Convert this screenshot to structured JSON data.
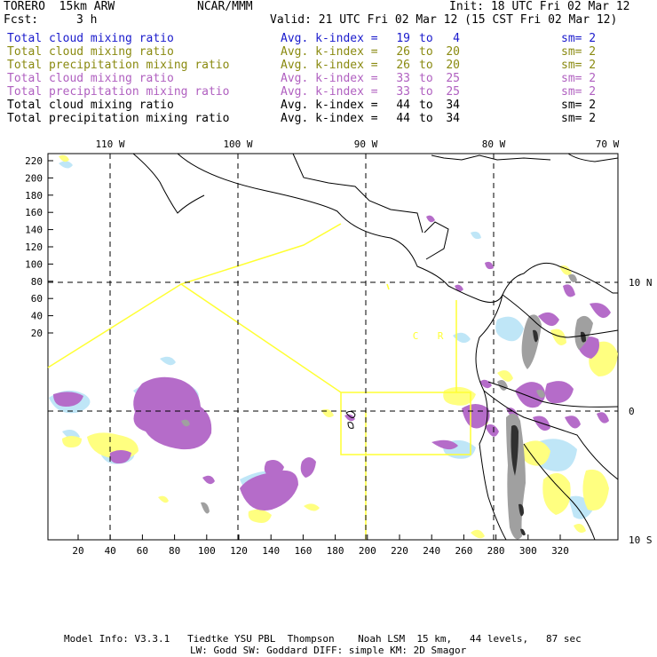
{
  "header": {
    "model": "TORERO  15km ARW",
    "center": "NCAR/MMM",
    "init": "Init: 18 UTC Fri 02 Mar 12",
    "fcst_label": "Fcst:",
    "fcst_value": "3 h",
    "valid": "Valid: 21 UTC Fri 02 Mar 12 (15 CST Fri 02 Mar 12)"
  },
  "legend": [
    {
      "field": "Total cloud mixing ratio",
      "kindex": "Avg. k-index =",
      "from": "19",
      "to_word": "to",
      "to": "4",
      "sm": "sm= 2",
      "color": "#1a1acc"
    },
    {
      "field": "Total cloud mixing ratio",
      "kindex": "Avg. k-index =",
      "from": "26",
      "to_word": "to",
      "to": "20",
      "sm": "sm= 2",
      "color": "#8a8a10"
    },
    {
      "field": "Total precipitation mixing ratio",
      "kindex": "Avg. k-index =",
      "from": "26",
      "to_word": "to",
      "to": "20",
      "sm": "sm= 2",
      "color": "#8a8a10"
    },
    {
      "field": "Total cloud mixing ratio",
      "kindex": "Avg. k-index =",
      "from": "33",
      "to_word": "to",
      "to": "25",
      "sm": "sm= 2",
      "color": "#b060c0"
    },
    {
      "field": "Total precipitation mixing ratio",
      "kindex": "Avg. k-index =",
      "from": "33",
      "to_word": "to",
      "to": "25",
      "sm": "sm= 2",
      "color": "#b060c0"
    },
    {
      "field": "Total cloud mixing ratio",
      "kindex": "Avg. k-index =",
      "from": "44",
      "to_word": "to",
      "to": "34",
      "sm": "sm= 2",
      "color": "#000000"
    },
    {
      "field": "Total precipitation mixing ratio",
      "kindex": "Avg. k-index =",
      "from": "44",
      "to_word": "to",
      "to": "34",
      "sm": "sm= 2",
      "color": "#000000"
    }
  ],
  "map": {
    "top_lon_labels": [
      "110 W",
      "100 W",
      "90 W",
      "80 W",
      "70 W"
    ],
    "right_lat_labels": [
      "10 N",
      "0",
      "10 S"
    ],
    "left_y_ticks": [
      "220",
      "200",
      "180",
      "160",
      "140",
      "120",
      "100",
      "80",
      "60",
      "40",
      "20"
    ],
    "bottom_x_ticks": [
      "20",
      "40",
      "60",
      "80",
      "100",
      "120",
      "140",
      "160",
      "180",
      "200",
      "220",
      "240",
      "260",
      "280",
      "300",
      "320"
    ],
    "region_labels": [
      "C",
      "R"
    ],
    "colors": {
      "light_blue": "#bfe6f7",
      "yellow": "#ffff80",
      "purple": "#b56cc9",
      "gray": "#a0a0a0",
      "dark": "#303030",
      "coast": "#000000",
      "domain_box": "#ffff33"
    }
  },
  "footer": {
    "line1": "Model Info: V3.3.1   Tiedtke YSU PBL  Thompson    Noah LSM  15 km,   44 levels,   87 sec",
    "line2": "LW: Godd SW: Goddard DIFF: simple KM: 2D Smagor"
  }
}
